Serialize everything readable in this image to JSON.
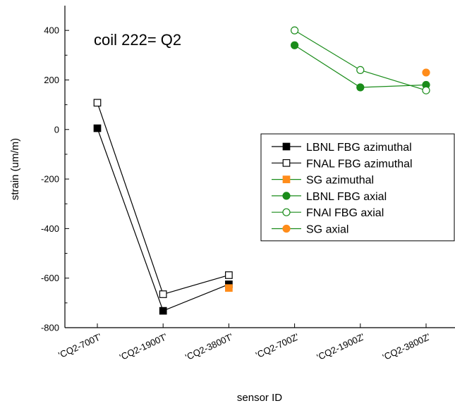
{
  "chart_data": {
    "type": "scatter",
    "title": "",
    "annotation": "coil 222= Q2",
    "xlabel": "sensor ID",
    "ylabel": "strain (um/m)",
    "categories": [
      "'CQ2-700T'",
      "'CQ2-1900T'",
      "'CQ2-3800T'",
      "'CQ2-700Z'",
      "'CQ2-1900Z'",
      "'CQ2-3800Z'"
    ],
    "ylim": [
      -800,
      500
    ],
    "yticks": [
      -800,
      -600,
      -400,
      -200,
      0,
      200,
      400
    ],
    "grid": false,
    "legend_position": "right",
    "series": [
      {
        "name": "LBNL FBG azimuthal",
        "color": "#000000",
        "marker": "square",
        "filled": true,
        "line": true,
        "points": [
          [
            0,
            5
          ],
          [
            1,
            -732
          ],
          [
            2,
            -625
          ]
        ]
      },
      {
        "name": "FNAL FBG azimuthal",
        "color": "#000000",
        "marker": "square",
        "filled": false,
        "line": true,
        "points": [
          [
            0,
            108
          ],
          [
            1,
            -665
          ],
          [
            2,
            -588
          ]
        ]
      },
      {
        "name": "SG azimuthal",
        "color": "#ff8c1a",
        "marker": "square",
        "filled": true,
        "line": false,
        "points": [
          [
            2,
            -640
          ]
        ]
      },
      {
        "name": "LBNL FBG axial",
        "color": "#1a8c1a",
        "marker": "circle",
        "filled": true,
        "line": true,
        "points": [
          [
            3,
            340
          ],
          [
            4,
            170
          ],
          [
            5,
            180
          ]
        ]
      },
      {
        "name": "FNAl FBG axial",
        "color": "#1a8c1a",
        "marker": "circle",
        "filled": false,
        "line": true,
        "points": [
          [
            3,
            400
          ],
          [
            4,
            240
          ],
          [
            5,
            158
          ]
        ]
      },
      {
        "name": "SG axial",
        "color": "#ff8c1a",
        "marker": "circle",
        "filled": true,
        "line": false,
        "points": [
          [
            5,
            230
          ]
        ]
      }
    ]
  }
}
